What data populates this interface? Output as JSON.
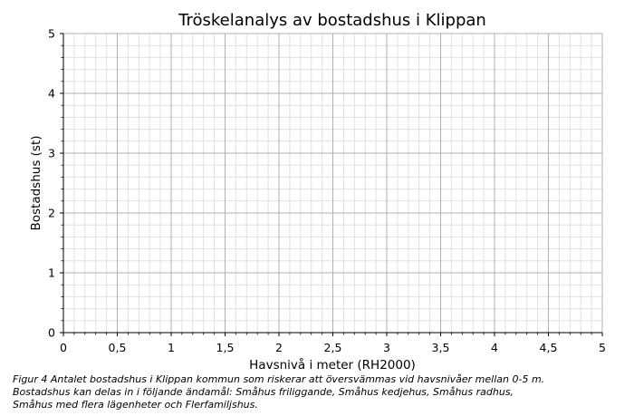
{
  "chart_data": {
    "type": "line",
    "title": "Tröskelanalys av bostadshus i Klippan",
    "xlabel": "Havsnivå i meter (RH2000)",
    "ylabel": "Bostadshus (st)",
    "xlim": [
      0,
      5
    ],
    "ylim": [
      0,
      5
    ],
    "x_ticks": [
      0,
      0.5,
      1,
      1.5,
      2,
      2.5,
      3,
      3.5,
      4,
      4.5,
      5
    ],
    "x_tick_labels": [
      "0",
      "0,5",
      "1",
      "1,5",
      "2",
      "2,5",
      "3",
      "3,5",
      "4",
      "4,5",
      "5"
    ],
    "y_ticks": [
      0,
      1,
      2,
      3,
      4,
      5
    ],
    "y_tick_labels": [
      "0",
      "1",
      "2",
      "3",
      "4",
      "5"
    ],
    "x_minor_step": 0.1,
    "y_minor_step": 0.2,
    "grid": true,
    "series": []
  },
  "caption": {
    "line1": "Figur 4 Antalet bostadshus i Klippan kommun som riskerar att översvämmas vid havsnivåer mellan 0-5 m.",
    "line2": "Bostadshus kan delas in i följande ändamål: Småhus friliggande, Småhus kedjehus, Småhus radhus,",
    "line3": "Småhus med flera lägenheter och Flerfamiljshus."
  }
}
